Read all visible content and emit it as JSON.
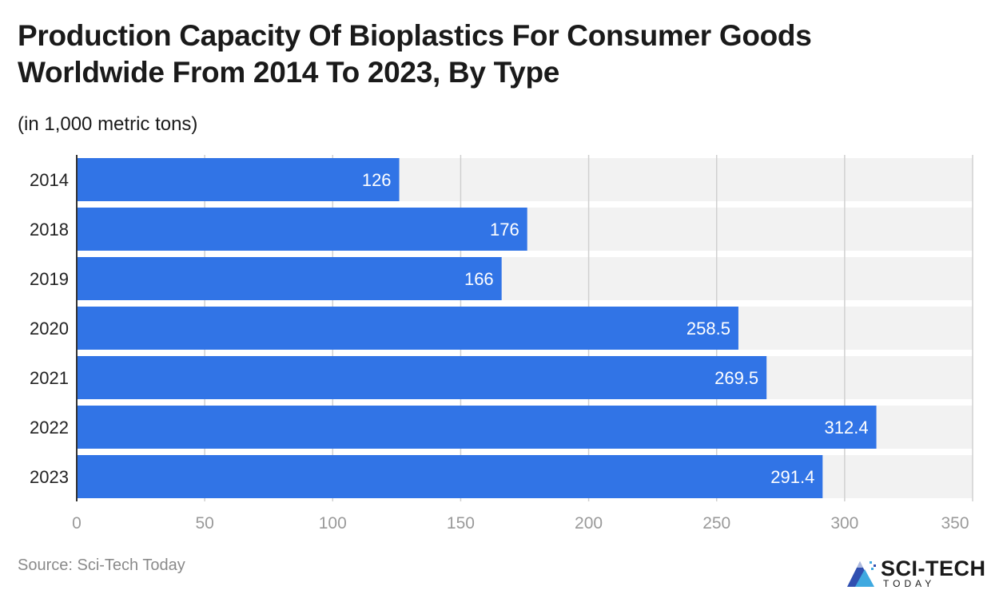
{
  "title": "Production Capacity Of Bioplastics For Consumer Goods Worldwide From 2014 To 2023, By Type",
  "subtitle": "(in 1,000 metric tons)",
  "source": "Source: Sci-Tech Today",
  "logo": {
    "main": "SCI-TECH",
    "sub": "TODAY"
  },
  "colors": {
    "bar": "#3174e6",
    "band": "#f2f2f2",
    "grid": "#d0d0d0",
    "tick": "#9a9a9a",
    "label": "#222222"
  },
  "chart_data": {
    "type": "bar",
    "orientation": "horizontal",
    "categories": [
      "2014",
      "2018",
      "2019",
      "2020",
      "2021",
      "2022",
      "2023"
    ],
    "values": [
      126,
      176,
      166,
      258.5,
      269.5,
      312.4,
      291.4
    ],
    "value_labels": [
      "126",
      "176",
      "166",
      "258.5",
      "269.5",
      "312.4",
      "291.4"
    ],
    "xticks": [
      0,
      50,
      100,
      150,
      200,
      250,
      300,
      350
    ],
    "xlim": [
      0,
      350
    ],
    "title": "Production Capacity Of Bioplastics For Consumer Goods Worldwide From 2014 To 2023, By Type",
    "xlabel": "",
    "ylabel": ""
  }
}
